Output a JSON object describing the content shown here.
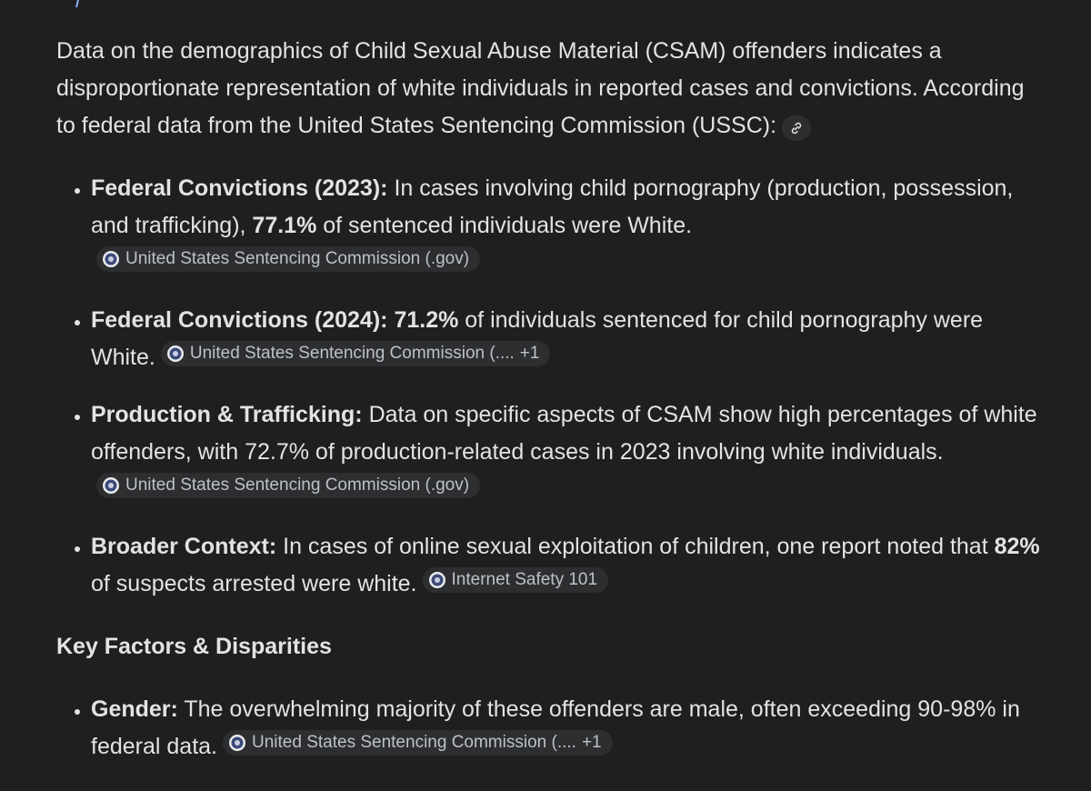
{
  "intro": "Data on the demographics of Child Sexual Abuse Material (CSAM) offenders indicates a disproportionate representation of white individuals in reported cases and convictions. According to federal data from the United States Sentencing Commission (USSC):",
  "list": [
    {
      "label": "Federal Convictions (2023):",
      "body": [
        "In cases involving child pornography (production, possession, and trafficking),",
        {
          "text": "77.1%",
          "bold": true
        },
        "of sentenced individuals were White."
      ],
      "source": {
        "name": "United States Sentencing Commission (.gov)"
      }
    },
    {
      "label": "Federal Convictions (2024):",
      "body": [
        {
          "text": "71.2%",
          "bold": true
        },
        "of individuals sentenced for child pornography were White."
      ],
      "source": {
        "name": "United States Sentencing Commission (....",
        "extra": "+1"
      }
    },
    {
      "label": "Production & Trafficking:",
      "body": [
        "Data on specific aspects of CSAM show high percentages of white offenders, with 72.7% of production-related cases in 2023 involving white individuals."
      ],
      "source": {
        "name": "United States Sentencing Commission (.gov)"
      }
    },
    {
      "label": "Broader Context:",
      "body": [
        "In cases of online sexual exploitation of children, one report noted that",
        {
          "text": "82%",
          "bold": true
        },
        "of suspects arrested were white."
      ],
      "source": {
        "name": "Internet Safety 101"
      }
    }
  ],
  "heading": "Key Factors & Disparities",
  "list_2": [
    {
      "label": "Gender:",
      "body": [
        "The overwhelming majority of these offenders are male, often exceeding 90-98% in federal data."
      ],
      "source": {
        "name": "United States Sentencing Commission (....",
        "extra": "+1"
      }
    }
  ]
}
